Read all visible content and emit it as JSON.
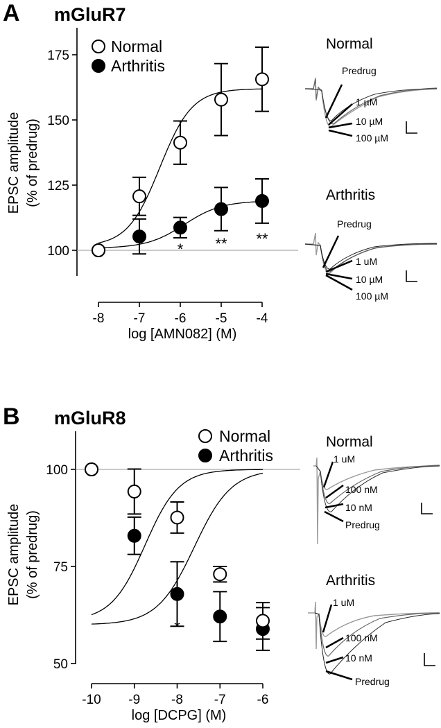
{
  "chart_data": [
    {
      "type": "scatter",
      "panel_label": "A",
      "title": "mGluR7",
      "xlabel": "log [AMN082] (M)",
      "ylabel": [
        "EPSC amplitude",
        "(% of predrug)"
      ],
      "x_ticks": [
        -8,
        -7,
        -6,
        -5,
        -4
      ],
      "y_ticks": [
        100,
        125,
        150,
        175
      ],
      "xlim": [
        -8.3,
        -3.7
      ],
      "ylim": [
        95,
        180
      ],
      "reference_line": 100,
      "legend": {
        "position": "top-left",
        "entries": [
          "Normal",
          "Arthritis"
        ]
      },
      "series": [
        {
          "name": "Normal",
          "marker": "open-circle",
          "x": [
            -8,
            -7,
            -6,
            -5,
            -4
          ],
          "y": [
            100,
            120.7,
            141.3,
            157.8,
            165.6
          ],
          "err": [
            0,
            7.3,
            8.3,
            13.8,
            12.3
          ],
          "fit": {
            "bottom": 101.5,
            "top": 162,
            "logEC50": -6.5,
            "hill": 1.1
          }
        },
        {
          "name": "Arthritis",
          "marker": "filled-circle",
          "x": [
            -8,
            -7,
            -6,
            -5,
            -4
          ],
          "y": [
            100,
            105.3,
            108.7,
            115.8,
            118.9
          ],
          "err": [
            0,
            6.7,
            3.9,
            8.3,
            8.5
          ],
          "fit": {
            "bottom": 100.8,
            "top": 119,
            "logEC50": -5.9,
            "hill": 0.95
          }
        }
      ],
      "significance": [
        {
          "x": -6,
          "label": "*"
        },
        {
          "x": -5,
          "label": "**"
        },
        {
          "x": -4,
          "label": "**"
        }
      ],
      "traces": [
        {
          "title": "Normal",
          "labels": [
            "Predrug",
            "1 µM",
            "10 µM",
            "100 µM"
          ]
        },
        {
          "title": "Arthritis",
          "labels": [
            "Predrug",
            "1 uM",
            "10 µM",
            "100 µM"
          ]
        }
      ]
    },
    {
      "type": "scatter",
      "panel_label": "B",
      "title": "mGluR8",
      "xlabel": "log [DCPG] (M)",
      "ylabel": [
        "EPSC amplitude",
        "(% of predrug)"
      ],
      "x_ticks": [
        -10,
        -9,
        -8,
        -7,
        -6
      ],
      "y_ticks": [
        50,
        75,
        100
      ],
      "xlim": [
        -10.3,
        -5.7
      ],
      "ylim": [
        50,
        111
      ],
      "reference_line": 100,
      "legend": {
        "position": "top-right",
        "entries": [
          "Normal",
          "Arthritis"
        ]
      },
      "series": [
        {
          "name": "Normal",
          "marker": "open-circle",
          "x": [
            -10,
            -9,
            -8,
            -7,
            -6
          ],
          "y": [
            100,
            94.3,
            87.6,
            73.0,
            61.0
          ],
          "err": [
            0,
            5.8,
            4.0,
            2.0,
            4.7
          ],
          "fit": {
            "bottom": 60,
            "top": 100,
            "logEC50": -7.6,
            "hill": 1.0
          }
        },
        {
          "name": "Arthritis",
          "marker": "filled-circle",
          "x": [
            -10,
            -9,
            -8,
            -7,
            -6
          ],
          "y": [
            100,
            82.9,
            67.9,
            62.1,
            58.9
          ],
          "err": [
            0,
            4.8,
            8.3,
            6.4,
            5.5
          ],
          "fit": {
            "bottom": 61,
            "top": 100,
            "logEC50": -8.75,
            "hill": 1.1
          }
        }
      ],
      "significance": [
        {
          "x": -8,
          "label": "*"
        }
      ],
      "traces": [
        {
          "title": "Normal",
          "labels": [
            "1 uM",
            "100 nM",
            "10 nM",
            "Predrug"
          ]
        },
        {
          "title": "Arthritis",
          "labels": [
            "1 uM",
            "100 nM",
            "10 nM",
            "Predrug"
          ]
        }
      ]
    }
  ]
}
